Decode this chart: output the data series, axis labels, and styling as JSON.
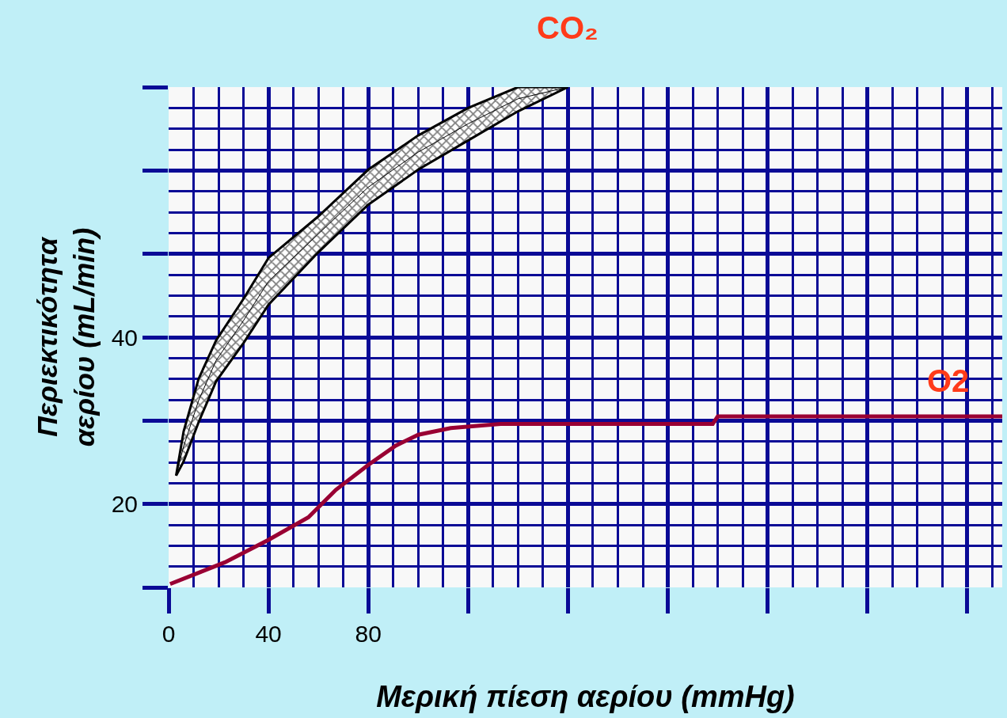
{
  "chart_data": {
    "type": "line",
    "xlabel": "Μερική πίεση αερίου (mmHg)",
    "ylabel": "Περιεκτικότητα\nαερίου (mL/min)",
    "xlim": [
      0,
      334
    ],
    "ylim": [
      10,
      70
    ],
    "xticks": [
      0,
      {
        "value": 10,
        "label": null
      },
      {
        "value": 20,
        "label": null
      },
      {
        "value": 30,
        "label": null
      },
      40,
      {
        "value": 50,
        "label": null
      },
      {
        "value": 60,
        "label": null
      },
      {
        "value": 70,
        "label": null
      },
      80,
      {
        "value": 90,
        "label": null
      },
      {
        "value": 100,
        "label": null
      },
      {
        "value": 110,
        "label": null
      },
      {
        "value": 120,
        "label": null
      },
      {
        "value": 130,
        "label": null
      },
      {
        "value": 140,
        "label": null
      },
      {
        "value": 150,
        "label": null
      },
      {
        "value": 160,
        "label": null
      },
      {
        "value": 170,
        "label": null
      },
      {
        "value": 180,
        "label": null
      },
      {
        "value": 190,
        "label": null
      },
      {
        "value": 200,
        "label": null
      },
      {
        "value": 210,
        "label": null
      },
      {
        "value": 220,
        "label": null
      },
      {
        "value": 230,
        "label": null
      },
      {
        "value": 240,
        "label": null
      },
      {
        "value": 250,
        "label": null
      },
      {
        "value": 260,
        "label": null
      },
      {
        "value": 270,
        "label": null
      },
      {
        "value": 280,
        "label": null
      },
      {
        "value": 290,
        "label": null
      },
      {
        "value": 300,
        "label": null
      },
      {
        "value": 310,
        "label": null
      },
      {
        "value": 320,
        "label": null
      },
      {
        "value": 330,
        "label": null
      }
    ],
    "yticks": [
      {
        "value": 10,
        "label": null
      },
      {
        "value": 12.5,
        "label": null
      },
      {
        "value": 15,
        "label": null
      },
      {
        "value": 17.5,
        "label": null
      },
      20,
      {
        "value": 22.5,
        "label": null
      },
      {
        "value": 25,
        "label": null
      },
      {
        "value": 27.5,
        "label": null
      },
      {
        "value": 30,
        "label": null
      },
      {
        "value": 32.5,
        "label": null
      },
      {
        "value": 35,
        "label": null
      },
      {
        "value": 37.5,
        "label": null
      },
      40,
      {
        "value": 42.5,
        "label": null
      },
      {
        "value": 45,
        "label": null
      },
      {
        "value": 47.5,
        "label": null
      },
      {
        "value": 50,
        "label": null
      },
      {
        "value": 52.5,
        "label": null
      },
      {
        "value": 55,
        "label": null
      },
      {
        "value": 57.5,
        "label": null
      },
      {
        "value": 60,
        "label": null
      },
      {
        "value": 62.5,
        "label": null
      },
      {
        "value": 65,
        "label": null
      },
      {
        "value": 67.5,
        "label": null
      },
      {
        "value": 70,
        "label": null
      }
    ],
    "grid": true,
    "series": [
      {
        "name": "CO₂",
        "color": "#000000",
        "x": [
          3,
          6,
          12,
          19,
          30,
          40,
          60,
          80,
          100,
          120,
          140,
          160
        ],
        "values": [
          23.4,
          26.9,
          32.4,
          37.2,
          42,
          46.7,
          52.4,
          58,
          62.2,
          65.6,
          68.6,
          70
        ],
        "lower": [
          23.4,
          25.1,
          29.8,
          34.7,
          39.3,
          43.9,
          50.2,
          55.9,
          60.1,
          63.6,
          67.1,
          70
        ],
        "upper": [
          23.4,
          28.7,
          35,
          39.6,
          44.6,
          49.5,
          54.5,
          60.1,
          64.2,
          67.5,
          70,
          70
        ]
      },
      {
        "name": "O2",
        "color": "#990033",
        "x": [
          0.6,
          22.5,
          40,
          56,
          67,
          80,
          91,
          100,
          113,
          133,
          218,
          220,
          334
        ],
        "values": [
          10.4,
          13,
          15.7,
          18.4,
          21.7,
          24.7,
          27,
          28.3,
          29.1,
          29.6,
          29.6,
          30.5,
          30.5
        ]
      }
    ]
  }
}
